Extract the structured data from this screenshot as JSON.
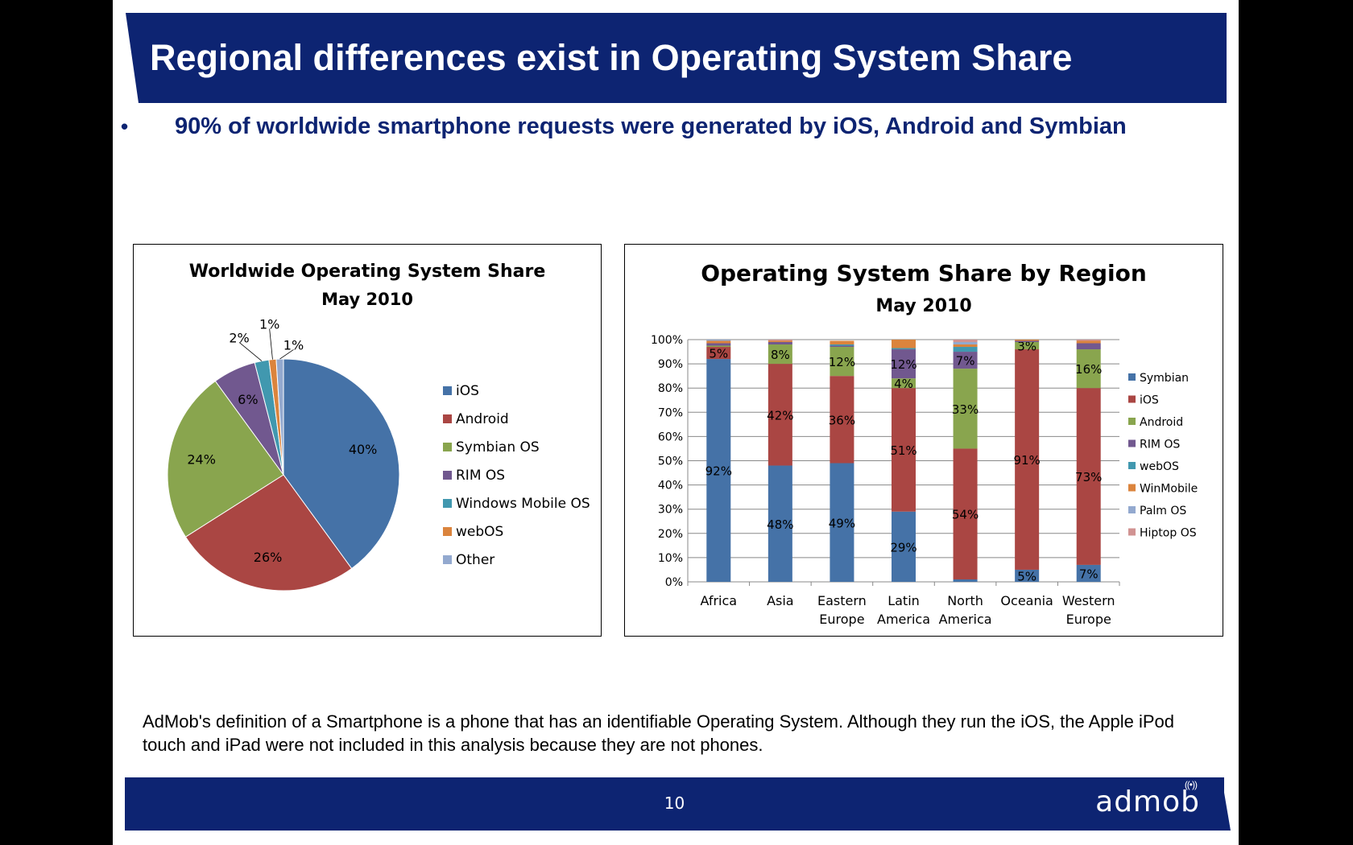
{
  "slide": {
    "title": "Regional differences exist in Operating System Share",
    "bullet_glyph": "•",
    "bullet": "90% of worldwide smartphone requests were generated by iOS, Android and Symbian",
    "footnote": "AdMob's definition of a Smartphone is a phone that has an identifiable Operating System. Although they run the iOS, the Apple iPod touch and iPad were not included in this analysis because they are not phones.",
    "page_number": "10",
    "logo_text": "admob",
    "colors": {
      "title_bar": "#0d2472",
      "title_text": "#ffffff",
      "bullet_text": "#0d2472"
    }
  },
  "chart_data": [
    {
      "type": "pie",
      "title": "Worldwide Operating System Share",
      "subtitle": "May 2010",
      "legend_placement": "right",
      "labels": [
        "iOS",
        "Android",
        "Symbian OS",
        "RIM OS",
        "Windows Mobile OS",
        "webOS",
        "Other"
      ],
      "values": [
        40,
        26,
        24,
        6,
        2,
        1,
        1
      ],
      "value_labels": [
        "40%",
        "26%",
        "24%",
        "6%",
        "2%",
        "1%",
        "1%"
      ],
      "colors": [
        "#4572a7",
        "#aa4643",
        "#89a54e",
        "#71588f",
        "#4198af",
        "#db843d",
        "#93a9cf"
      ]
    },
    {
      "type": "bar",
      "stacked": true,
      "title": "Operating System Share by Region",
      "subtitle": "May 2010",
      "legend_placement": "right",
      "grid": true,
      "ylim": [
        0,
        100
      ],
      "yticks": [
        "0%",
        "10%",
        "20%",
        "30%",
        "40%",
        "50%",
        "60%",
        "70%",
        "80%",
        "90%",
        "100%"
      ],
      "categories": [
        [
          "Africa"
        ],
        [
          "Asia"
        ],
        [
          "Eastern",
          "Europe"
        ],
        [
          "Latin",
          "America"
        ],
        [
          "North",
          "America"
        ],
        [
          "Oceania"
        ],
        [
          "Western",
          "Europe"
        ]
      ],
      "series": [
        {
          "name": "Symbian",
          "color": "#4572a7",
          "values": [
            92,
            48,
            49,
            29,
            1,
            5,
            7
          ],
          "labels": [
            "92%",
            "48%",
            "49%",
            "29%",
            "",
            "5%",
            "7%"
          ]
        },
        {
          "name": "iOS",
          "color": "#aa4643",
          "values": [
            5,
            42,
            36,
            51,
            54,
            91,
            73
          ],
          "labels": [
            "5%",
            "42%",
            "36%",
            "51%",
            "54%",
            "91%",
            "73%"
          ]
        },
        {
          "name": "Android",
          "color": "#89a54e",
          "values": [
            0.5,
            8,
            12,
            4,
            33,
            3,
            16
          ],
          "labels": [
            "",
            "8%",
            "12%",
            "4%",
            "33%",
            "3%",
            "16%"
          ]
        },
        {
          "name": "RIM OS",
          "color": "#71588f",
          "values": [
            1,
            1,
            0.5,
            12,
            7,
            0.5,
            2.5
          ],
          "labels": [
            "",
            "",
            "",
            "12%",
            "7%",
            "",
            ""
          ]
        },
        {
          "name": "webOS",
          "color": "#4198af",
          "values": [
            0,
            0,
            0.5,
            0.5,
            2,
            0,
            0
          ],
          "labels": [
            "",
            "",
            "",
            "",
            "",
            "",
            ""
          ]
        },
        {
          "name": "WinMobile",
          "color": "#db843d",
          "values": [
            1,
            0.5,
            1.5,
            3.5,
            1,
            0.5,
            1
          ],
          "labels": [
            "",
            "",
            "",
            "",
            "",
            "",
            ""
          ]
        },
        {
          "name": "Palm OS",
          "color": "#93a9cf",
          "values": [
            0.5,
            0,
            0,
            0,
            1,
            0,
            0
          ],
          "labels": [
            "",
            "",
            "",
            "",
            "",
            "",
            ""
          ]
        },
        {
          "name": "Hiptop OS",
          "color": "#d19392",
          "values": [
            0,
            0.5,
            0,
            0,
            1,
            0,
            0.5
          ],
          "labels": [
            "",
            "",
            "",
            "",
            "",
            "",
            ""
          ]
        }
      ]
    }
  ]
}
